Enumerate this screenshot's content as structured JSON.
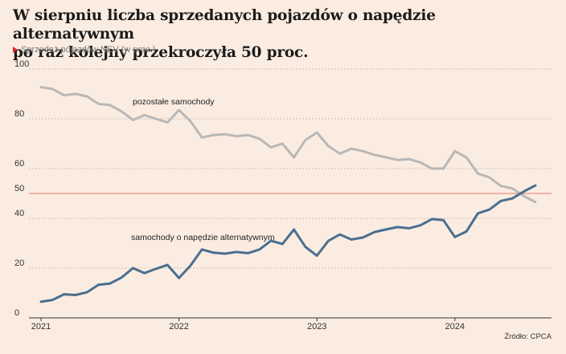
{
  "header": {
    "title_line1": "W sierpniu liczba sprzedanych pojazdów o napędzie alternatywnym",
    "title_line2": "po raz kolejny przekroczyła 50 proc.",
    "subtitle": "Sprzedaż pojazdów NEV (w proc.)"
  },
  "footer": {
    "source": "Źródło: CPCA"
  },
  "colors": {
    "background": "#fbece1",
    "others_line": "#b8b8b8",
    "nev_line": "#4a6f8e",
    "reference_line": "#e07b6d",
    "grid": "#b9b2ab",
    "marker": "#d9262a"
  },
  "chart_data": {
    "type": "line",
    "x_tick_labels": [
      "2021",
      "2022",
      "2023",
      "2024"
    ],
    "y_tick_labels": [
      "0",
      "20",
      "40",
      "50",
      "60",
      "80",
      "100"
    ],
    "y_ticks": [
      0,
      20,
      40,
      50,
      60,
      80,
      100
    ],
    "ylim": [
      0,
      100
    ],
    "grid": "horizontal dashed",
    "reference_line": 50,
    "x": [
      "2021-01",
      "2021-02",
      "2021-03",
      "2021-04",
      "2021-05",
      "2021-06",
      "2021-07",
      "2021-08",
      "2021-09",
      "2021-10",
      "2021-11",
      "2021-12",
      "2022-01",
      "2022-02",
      "2022-03",
      "2022-04",
      "2022-05",
      "2022-06",
      "2022-07",
      "2022-08",
      "2022-09",
      "2022-10",
      "2022-11",
      "2022-12",
      "2023-01",
      "2023-02",
      "2023-03",
      "2023-04",
      "2023-05",
      "2023-06",
      "2023-07",
      "2023-08",
      "2023-09",
      "2023-10",
      "2023-11",
      "2023-12",
      "2024-01",
      "2024-02",
      "2024-03",
      "2024-04",
      "2024-05",
      "2024-06",
      "2024-07",
      "2024-08"
    ],
    "series": [
      {
        "name": "pozostałe samochody",
        "values": [
          92.7,
          92.0,
          89.5,
          90.0,
          89.0,
          86.0,
          85.5,
          83.0,
          79.5,
          81.5,
          80.0,
          78.5,
          83.5,
          79.0,
          72.5,
          73.5,
          73.8,
          73.0,
          73.5,
          72.0,
          68.5,
          70.0,
          64.5,
          71.5,
          74.5,
          69.0,
          66.0,
          68.0,
          67.0,
          65.5,
          64.5,
          63.5,
          63.8,
          62.5,
          60.0,
          60.0,
          67.0,
          64.5,
          58.0,
          56.5,
          53.0,
          52.0,
          49.0,
          46.5
        ]
      },
      {
        "name": "samochody o napędzie alternatywnym",
        "values": [
          6.5,
          7.2,
          9.5,
          9.2,
          10.3,
          13.3,
          13.8,
          16.2,
          20.0,
          18.0,
          19.7,
          21.3,
          16.0,
          21.0,
          27.5,
          26.2,
          25.8,
          26.5,
          26.0,
          27.5,
          31.0,
          29.7,
          35.5,
          28.5,
          25.0,
          31.0,
          33.5,
          31.5,
          32.3,
          34.5,
          35.5,
          36.5,
          36.0,
          37.2,
          39.7,
          39.3,
          32.5,
          34.7,
          42.0,
          43.5,
          47.0,
          48.0,
          50.8,
          53.2
        ]
      }
    ]
  }
}
